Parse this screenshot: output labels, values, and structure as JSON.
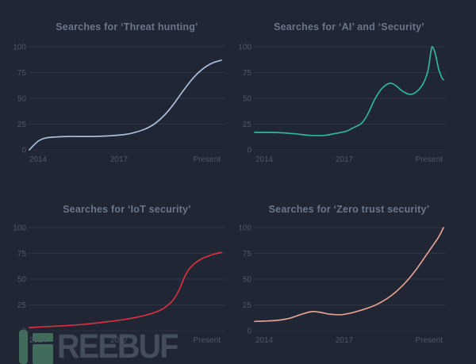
{
  "watermark": {
    "text": "REEBUF",
    "logo_color": "#416c5b",
    "text_color": "#444e5b"
  },
  "chart_data": [
    {
      "type": "line",
      "title": "Searches for ‘Threat hunting’",
      "line_color": "#a9bed8",
      "ylim": [
        0,
        100
      ],
      "x_range": [
        2014,
        2020
      ],
      "y_ticks": [
        "100",
        "75",
        "50",
        "25",
        "0"
      ],
      "x_ticks": [
        "2014",
        "2017",
        "Present"
      ],
      "grid": "horizontal",
      "legend": "none",
      "points": [
        [
          2014,
          0
        ],
        [
          2014.15,
          5
        ],
        [
          2014.3,
          9
        ],
        [
          2014.5,
          11.5
        ],
        [
          2014.8,
          12.5
        ],
        [
          2015.2,
          13
        ],
        [
          2015.8,
          13
        ],
        [
          2016.4,
          13.5
        ],
        [
          2017,
          15
        ],
        [
          2017.3,
          17
        ],
        [
          2017.6,
          20
        ],
        [
          2017.9,
          25
        ],
        [
          2018.2,
          33
        ],
        [
          2018.5,
          44
        ],
        [
          2018.8,
          57
        ],
        [
          2019.1,
          69
        ],
        [
          2019.4,
          78
        ],
        [
          2019.7,
          84
        ],
        [
          2020,
          87
        ]
      ]
    },
    {
      "type": "line",
      "title": "Searches for ‘AI’ and ‘Security’",
      "line_color": "#30b795",
      "ylim": [
        0,
        100
      ],
      "x_range": [
        2014,
        2020
      ],
      "y_ticks": [
        "100",
        "75",
        "50",
        "25",
        "0"
      ],
      "x_ticks": [
        "2014",
        "2017",
        "Present"
      ],
      "grid": "horizontal",
      "legend": "none",
      "points": [
        [
          2014,
          17
        ],
        [
          2014.5,
          17
        ],
        [
          2014.9,
          16.5
        ],
        [
          2015.3,
          15.5
        ],
        [
          2015.8,
          14
        ],
        [
          2016.2,
          14
        ],
        [
          2016.5,
          15.5
        ],
        [
          2016.9,
          18
        ],
        [
          2017.1,
          21
        ],
        [
          2017.4,
          26
        ],
        [
          2017.6,
          35
        ],
        [
          2017.8,
          48
        ],
        [
          2018,
          58
        ],
        [
          2018.2,
          63.5
        ],
        [
          2018.35,
          64.5
        ],
        [
          2018.5,
          62
        ],
        [
          2018.7,
          57
        ],
        [
          2018.9,
          54
        ],
        [
          2019.05,
          54.5
        ],
        [
          2019.2,
          58
        ],
        [
          2019.35,
          64
        ],
        [
          2019.5,
          76
        ],
        [
          2019.6,
          95
        ],
        [
          2019.65,
          100
        ],
        [
          2019.75,
          92
        ],
        [
          2019.85,
          78
        ],
        [
          2019.95,
          70
        ],
        [
          2020,
          68
        ]
      ]
    },
    {
      "type": "line",
      "title": "Searches for ‘IoT security’",
      "line_color": "#d8303f",
      "ylim": [
        0,
        100
      ],
      "x_range": [
        2014,
        2020
      ],
      "y_ticks": [
        "100",
        "75",
        "50",
        "25",
        "0"
      ],
      "x_ticks": [
        "2014",
        "2017",
        "Present"
      ],
      "grid": "horizontal",
      "legend": "none",
      "points": [
        [
          2014,
          3
        ],
        [
          2014.6,
          4
        ],
        [
          2015.2,
          5
        ],
        [
          2015.8,
          6.5
        ],
        [
          2016.4,
          8.5
        ],
        [
          2017,
          11
        ],
        [
          2017.5,
          14
        ],
        [
          2017.85,
          17
        ],
        [
          2018.1,
          20
        ],
        [
          2018.3,
          24
        ],
        [
          2018.5,
          30
        ],
        [
          2018.7,
          41
        ],
        [
          2018.85,
          52
        ],
        [
          2019,
          60
        ],
        [
          2019.2,
          66
        ],
        [
          2019.4,
          70
        ],
        [
          2019.6,
          72.5
        ],
        [
          2019.8,
          74.5
        ],
        [
          2020,
          76
        ]
      ]
    },
    {
      "type": "line",
      "title": "Searches for ‘Zero trust security’",
      "line_color": "#e4a092",
      "ylim": [
        0,
        100
      ],
      "x_range": [
        2014,
        2020
      ],
      "y_ticks": [
        "100",
        "75",
        "50",
        "25",
        "0"
      ],
      "x_ticks": [
        "2014",
        "2017",
        "Present"
      ],
      "grid": "horizontal",
      "legend": "none",
      "points": [
        [
          2014,
          9
        ],
        [
          2014.4,
          9.5
        ],
        [
          2014.7,
          10
        ],
        [
          2015.1,
          12
        ],
        [
          2015.45,
          15.5
        ],
        [
          2015.8,
          18.5
        ],
        [
          2016.05,
          18
        ],
        [
          2016.4,
          16
        ],
        [
          2016.75,
          15.5
        ],
        [
          2017.1,
          17.5
        ],
        [
          2017.5,
          21
        ],
        [
          2017.85,
          25
        ],
        [
          2018.2,
          31
        ],
        [
          2018.5,
          38
        ],
        [
          2018.8,
          47
        ],
        [
          2019.1,
          58
        ],
        [
          2019.4,
          71
        ],
        [
          2019.65,
          82
        ],
        [
          2019.85,
          91
        ],
        [
          2020,
          100
        ]
      ]
    }
  ]
}
